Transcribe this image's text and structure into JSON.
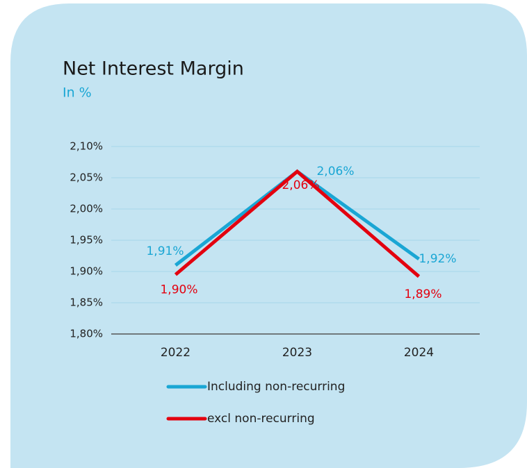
{
  "chart_data": {
    "type": "line",
    "title": "Net Interest Margin",
    "subtitle": "In %",
    "categories": [
      "2022",
      "2023",
      "2024"
    ],
    "series": [
      {
        "name": "Including non-recurring",
        "color": "#1aa6d4",
        "values": [
          1.91,
          2.06,
          1.92
        ],
        "value_labels": [
          "1,91%",
          "2,06%",
          "1,92%"
        ]
      },
      {
        "name": "excl non-recurring",
        "color": "#e3000f",
        "values": [
          1.895,
          2.06,
          1.892
        ],
        "value_labels": [
          "1,90%",
          "2,06%",
          "1,89%"
        ]
      }
    ],
    "ylim": [
      1.8,
      2.1
    ],
    "yticks": [
      {
        "value": 1.8,
        "label": "1,80%"
      },
      {
        "value": 1.85,
        "label": "1,85%"
      },
      {
        "value": 1.9,
        "label": "1,90%"
      },
      {
        "value": 1.95,
        "label": "1,95%"
      },
      {
        "value": 2.0,
        "label": "2,00%"
      },
      {
        "value": 2.05,
        "label": "2,05%"
      },
      {
        "value": 2.1,
        "label": "2,10%"
      }
    ],
    "grid": true
  }
}
